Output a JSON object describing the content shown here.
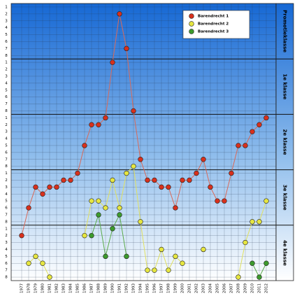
{
  "chart_data": {
    "type": "line",
    "categories": [
      "1977",
      "1978",
      "1979",
      "1980",
      "1981",
      "1982",
      "1983",
      "1984",
      "1985",
      "1986",
      "1987",
      "1988",
      "1989",
      "1990",
      "1991",
      "1992",
      "1993",
      "1994",
      "1995",
      "1996",
      "1997",
      "1998",
      "1999",
      "2000",
      "2001",
      "2002",
      "2003",
      "2004",
      "2005",
      "2006",
      "2007",
      "2008",
      "2009",
      "2010",
      "2011",
      "2012"
    ],
    "series": [
      {
        "name": "Barendrecht 1",
        "color": "#d8301c",
        "line_color": "#d86a5a",
        "values": [
          34,
          30,
          27,
          28,
          27,
          27,
          26,
          26,
          25,
          21,
          18,
          18,
          17,
          9,
          2,
          7,
          16,
          23,
          26,
          26,
          27,
          27,
          30,
          26,
          26,
          25,
          23,
          27,
          29,
          29,
          25,
          21,
          21,
          19,
          18,
          17
        ]
      },
      {
        "name": "Barendrecht 2",
        "color": "#e6e640",
        "line_color": "#e0e060",
        "values": [
          null,
          38,
          37,
          38,
          40,
          null,
          null,
          null,
          null,
          34,
          29,
          29,
          30,
          26,
          30,
          25,
          24,
          32,
          39,
          39,
          36,
          39,
          37,
          38,
          null,
          null,
          36,
          null,
          null,
          null,
          null,
          40,
          35,
          32,
          32,
          29
        ]
      },
      {
        "name": "Barendrecht 3",
        "color": "#3c9a2c",
        "line_color": "#5aaa4a",
        "values": [
          null,
          null,
          null,
          null,
          null,
          null,
          null,
          null,
          null,
          null,
          34,
          31,
          37,
          33,
          31,
          37,
          null,
          null,
          null,
          null,
          null,
          null,
          null,
          null,
          null,
          null,
          null,
          null,
          null,
          null,
          null,
          null,
          null,
          38,
          40,
          38
        ]
      }
    ],
    "bands": [
      "Promotieklasse",
      "1e klasse",
      "2e klasse",
      "3e klasse",
      "4e klasse"
    ],
    "ylim": [
      40.5,
      0.5
    ],
    "yticks": [
      1,
      2,
      3,
      4,
      5,
      6,
      7,
      8,
      {
        "value": 9,
        "label": "1"
      },
      {
        "value": 10,
        "label": "2"
      },
      {
        "value": 11,
        "label": "3"
      },
      {
        "value": 12,
        "label": "4"
      },
      {
        "value": 13,
        "label": "5"
      },
      {
        "value": 14,
        "label": "6"
      },
      {
        "value": 15,
        "label": "7"
      },
      {
        "value": 16,
        "label": "8"
      },
      {
        "value": 17,
        "label": "1"
      },
      {
        "value": 18,
        "label": "2"
      },
      {
        "value": 19,
        "label": "3"
      },
      {
        "value": 20,
        "label": "4"
      },
      {
        "value": 21,
        "label": "5"
      },
      {
        "value": 22,
        "label": "6"
      },
      {
        "value": 23,
        "label": "7"
      },
      {
        "value": 24,
        "label": "8"
      },
      {
        "value": 25,
        "label": "1"
      },
      {
        "value": 26,
        "label": "2"
      },
      {
        "value": 27,
        "label": "3"
      },
      {
        "value": 28,
        "label": "4"
      },
      {
        "value": 29,
        "label": "5"
      },
      {
        "value": 30,
        "label": "6"
      },
      {
        "value": 31,
        "label": "7"
      },
      {
        "value": 32,
        "label": "8"
      },
      {
        "value": 33,
        "label": "1"
      },
      {
        "value": 34,
        "label": "2"
      },
      {
        "value": 35,
        "label": "3"
      },
      {
        "value": 36,
        "label": "4"
      },
      {
        "value": 37,
        "label": "5"
      },
      {
        "value": 38,
        "label": "6"
      },
      {
        "value": 39,
        "label": "7"
      },
      {
        "value": 40,
        "label": "8"
      }
    ],
    "grid": true,
    "legend_position": "top-right"
  }
}
